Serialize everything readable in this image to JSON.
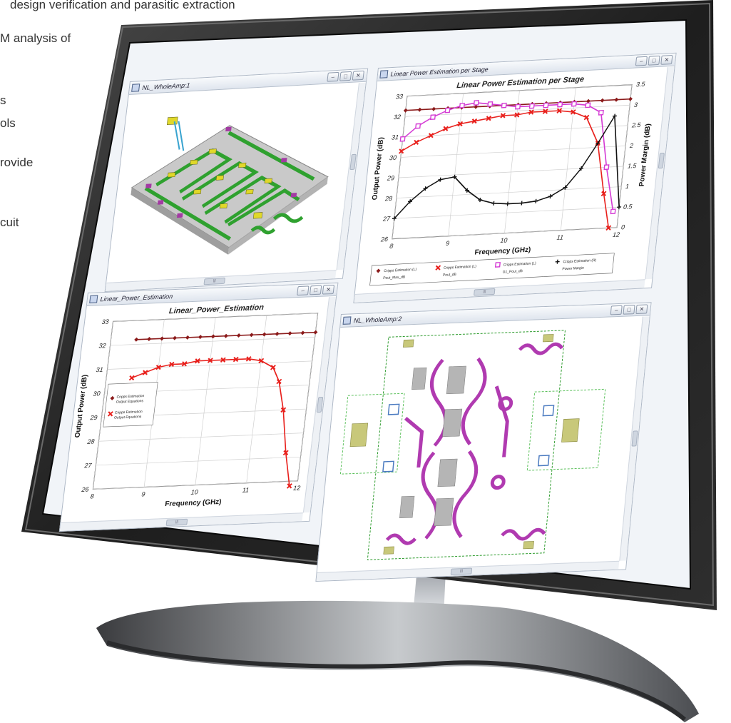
{
  "background_text": {
    "line1": "design verification and parasitic extraction",
    "line2": "M analysis of",
    "line3": "s",
    "line4": "ols",
    "line5": "rovide",
    "line6": "cuit"
  },
  "windows": {
    "top_left": {
      "title": "NL_WholeAmp:1",
      "scroll_label": "|||"
    },
    "top_right": {
      "title": "Linear Power Estimation per Stage",
      "scroll_label": "|||",
      "legend": [
        {
          "label": "Cripps Estimation (L)",
          "sub": "Pout_Max_dB",
          "color": "#8b1a1a"
        },
        {
          "label": "Cripps Estimation (L)",
          "sub": "Pout_dB",
          "color": "#e8201c"
        },
        {
          "label": "Cripps Estimation (L)",
          "sub": "G1_Pout_dB",
          "color": "#d43ad4"
        },
        {
          "label": "Cripps Estimation (R)",
          "sub": "Power Margin",
          "color": "#111111"
        }
      ]
    },
    "bottom_left": {
      "title": "Linear_Power_Estimation",
      "scroll_label": "|||",
      "legend": [
        {
          "label": "Cripps Estimation",
          "sub": "Output Equations",
          "color": "#8b1a1a"
        },
        {
          "label": "Cripps Estimation",
          "sub": "Output Equations",
          "color": "#e8201c"
        }
      ]
    },
    "bottom_right": {
      "title": "NL_WholeAmp:2",
      "scroll_label": "|||"
    }
  },
  "window_buttons": {
    "minimize": "–",
    "maximize": "□",
    "close": "✕"
  },
  "icons": {
    "window_icon": "chart-window-icon"
  },
  "chart_data": [
    {
      "type": "line",
      "title": "Linear Power Estimation per Stage",
      "xlabel": "Frequency (GHz)",
      "ylabel": "Output Power (dB)",
      "y2label": "Power Margin (dB)",
      "xlim": [
        8,
        12
      ],
      "ylim": [
        26,
        33
      ],
      "y2lim": [
        0,
        3.5
      ],
      "xticks": [
        8,
        9,
        10,
        11,
        12
      ],
      "yticks": [
        26,
        27,
        28,
        29,
        30,
        31,
        32,
        33
      ],
      "y2ticks": [
        0,
        0.5,
        1,
        1.5,
        2,
        2.5,
        3,
        3.5
      ],
      "grid": true,
      "legend_position": "bottom",
      "series": [
        {
          "name": "Pout_Max_dB",
          "color": "#8b1a1a",
          "marker": "diamond",
          "x": [
            8.0,
            8.25,
            8.5,
            8.75,
            9.0,
            9.25,
            9.5,
            9.75,
            10.0,
            10.25,
            10.5,
            10.75,
            11.0,
            11.25,
            11.5,
            11.75,
            12.0
          ],
          "values": [
            32.3,
            32.3,
            32.3,
            32.3,
            32.3,
            32.3,
            32.3,
            32.3,
            32.3,
            32.3,
            32.3,
            32.3,
            32.3,
            32.3,
            32.3,
            32.3,
            32.3
          ]
        },
        {
          "name": "Pout_dB",
          "color": "#e8201c",
          "marker": "x",
          "x": [
            8.0,
            8.25,
            8.5,
            8.75,
            9.0,
            9.25,
            9.5,
            9.75,
            10.0,
            10.25,
            10.5,
            10.75,
            11.0,
            11.25,
            11.5,
            11.7,
            11.85
          ],
          "values": [
            30.3,
            30.7,
            31.0,
            31.3,
            31.5,
            31.6,
            31.7,
            31.8,
            31.8,
            31.9,
            31.9,
            31.9,
            31.8,
            31.5,
            30.2,
            27.7,
            26.0
          ]
        },
        {
          "name": "G1_Pout_dB",
          "color": "#d43ad4",
          "marker": "square",
          "x": [
            8.0,
            8.25,
            8.5,
            8.75,
            9.0,
            9.25,
            9.5,
            9.75,
            10.0,
            10.25,
            10.5,
            10.75,
            11.0,
            11.25,
            11.5,
            11.7,
            11.9
          ],
          "values": [
            30.9,
            31.5,
            31.9,
            32.2,
            32.4,
            32.5,
            32.4,
            32.3,
            32.2,
            32.2,
            32.2,
            32.2,
            32.2,
            32.1,
            31.7,
            29.0,
            26.8
          ]
        },
        {
          "name": "Power Margin",
          "color": "#111111",
          "marker": "plus",
          "axis": "right",
          "x": [
            8.0,
            8.25,
            8.5,
            8.75,
            9.0,
            9.25,
            9.5,
            9.75,
            10.0,
            10.25,
            10.5,
            10.75,
            11.0,
            11.25,
            11.5,
            11.75,
            12.0
          ],
          "values": [
            0.5,
            0.9,
            1.2,
            1.4,
            1.45,
            1.1,
            0.85,
            0.75,
            0.72,
            0.72,
            0.75,
            0.85,
            1.05,
            1.5,
            2.1,
            2.75,
            0.5
          ]
        }
      ]
    },
    {
      "type": "line",
      "title": "Linear_Power_Estimation",
      "xlabel": "Frequency (GHz)",
      "ylabel": "Output Power (dB)",
      "xlim": [
        8,
        12
      ],
      "ylim": [
        26,
        33
      ],
      "xticks": [
        8,
        9,
        10,
        11,
        12
      ],
      "yticks": [
        26,
        27,
        28,
        29,
        30,
        31,
        32,
        33
      ],
      "grid": true,
      "legend_position": "left",
      "series": [
        {
          "color": "#8b1a1a",
          "marker": "diamond",
          "x": [
            8.5,
            8.75,
            9.0,
            9.25,
            9.5,
            9.75,
            10.0,
            10.25,
            10.5,
            10.75,
            11.0,
            11.25,
            11.5,
            11.75,
            12.0
          ],
          "values": [
            32.2,
            32.2,
            32.2,
            32.2,
            32.2,
            32.2,
            32.2,
            32.2,
            32.2,
            32.2,
            32.2,
            32.2,
            32.2,
            32.2,
            32.2
          ]
        },
        {
          "color": "#e8201c",
          "marker": "x",
          "x": [
            8.5,
            8.75,
            9.0,
            9.25,
            9.5,
            9.75,
            10.0,
            10.25,
            10.5,
            10.75,
            11.0,
            11.25,
            11.4,
            11.55,
            11.7,
            11.85
          ],
          "values": [
            30.6,
            30.8,
            31.0,
            31.1,
            31.1,
            31.2,
            31.2,
            31.2,
            31.2,
            31.2,
            31.1,
            30.8,
            30.2,
            29.0,
            27.2,
            25.8
          ]
        }
      ]
    }
  ]
}
